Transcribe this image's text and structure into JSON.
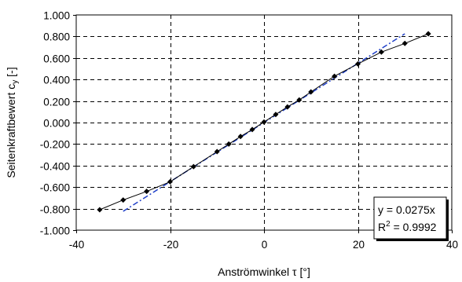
{
  "chart_data": {
    "type": "scatter",
    "xlabel": {
      "text": "Anströmwinkel ",
      "symbol": "τ",
      "unit": " [°]"
    },
    "ylabel": {
      "text": "Seitenkraftbewert c",
      "subscript": "y",
      "unit": " [-]"
    },
    "xlim": [
      -40,
      40
    ],
    "ylim": [
      -1.0,
      1.0
    ],
    "xticks": [
      -40,
      -20,
      0,
      20,
      40
    ],
    "yticks": [
      1.0,
      0.8,
      0.6,
      0.4,
      0.2,
      0.0,
      -0.2,
      -0.4,
      -0.6,
      -0.8,
      -1.0
    ],
    "ytick_labels": [
      "1.000",
      "0.800",
      "0.600",
      "0.400",
      "0.200",
      "0.000",
      "-0.200",
      "-0.400",
      "-0.600",
      "-0.800",
      "-1.000"
    ],
    "grid": {
      "horizontal": true,
      "vertical": true,
      "style": "dashed"
    },
    "series": [
      {
        "marker": "diamond",
        "color": "#000000",
        "x": [
          -35,
          -30,
          -25,
          -20,
          -15,
          -10,
          -7.5,
          -5,
          -2.5,
          0,
          2.5,
          5,
          7.5,
          10,
          15,
          20,
          25,
          30,
          35
        ],
        "y": [
          -0.81,
          -0.72,
          -0.64,
          -0.55,
          -0.41,
          -0.27,
          -0.2,
          -0.13,
          -0.065,
          0.005,
          0.075,
          0.145,
          0.21,
          0.285,
          0.43,
          0.545,
          0.655,
          0.735,
          0.825
        ]
      }
    ],
    "trendline": {
      "color": "#1f3fc8",
      "style": "dash-dot",
      "slope": 0.0275,
      "x_range": [
        -30,
        30
      ],
      "equation_label": "y = 0.0275x",
      "r2_prefix": "R",
      "r2_sup": "2",
      "r2_suffix": " = 0.9992"
    }
  }
}
